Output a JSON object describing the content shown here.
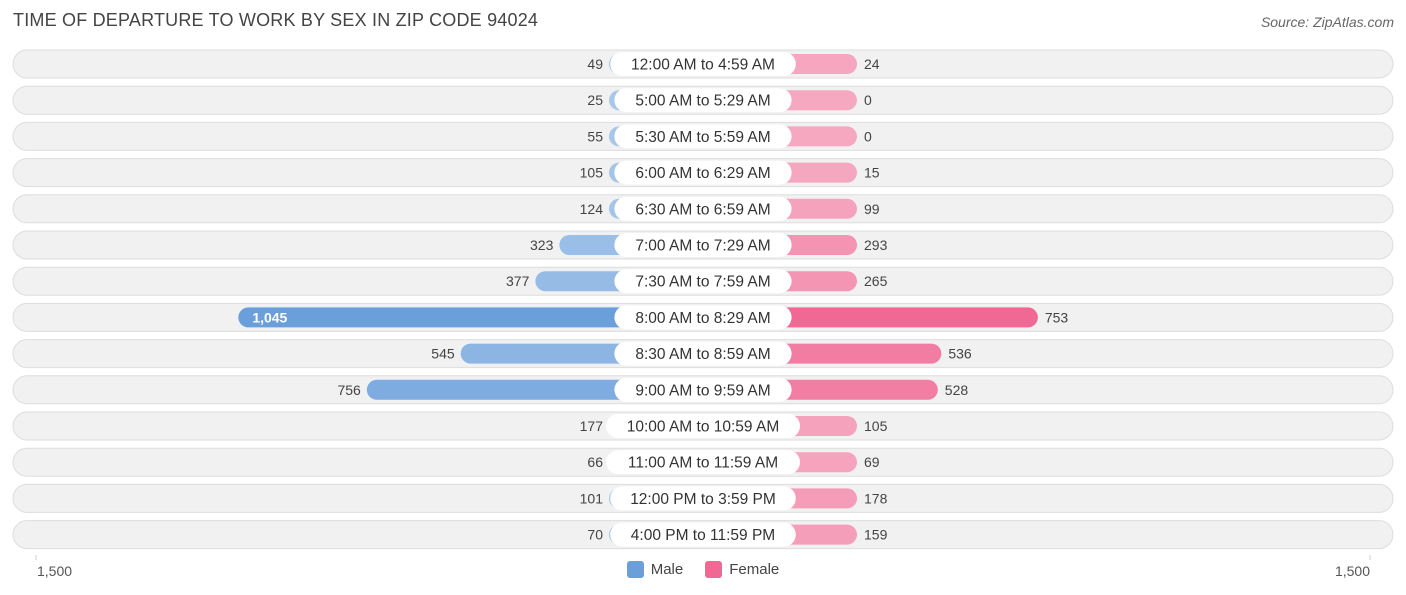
{
  "title": "TIME OF DEPARTURE TO WORK BY SEX IN ZIP CODE 94024",
  "source": "Source: ZipAtlas.com",
  "colors": {
    "male_light": "#a8c8ea",
    "male_dark": "#6a9fdc",
    "female_light": "#f6a8c0",
    "female_dark": "#f06894",
    "row_bg": "#f1f1f1",
    "row_border": "#dddddd"
  },
  "legend": {
    "male": "Male",
    "female": "Female"
  },
  "axis": {
    "left_label": "1,500",
    "right_label": "1,500"
  },
  "chart_data": {
    "type": "bar",
    "orientation": "horizontal-diverging",
    "title": "TIME OF DEPARTURE TO WORK BY SEX IN ZIP CODE 94024",
    "xlim": [
      -1500,
      1500
    ],
    "categories": [
      "12:00 AM to 4:59 AM",
      "5:00 AM to 5:29 AM",
      "5:30 AM to 5:59 AM",
      "6:00 AM to 6:29 AM",
      "6:30 AM to 6:59 AM",
      "7:00 AM to 7:29 AM",
      "7:30 AM to 7:59 AM",
      "8:00 AM to 8:29 AM",
      "8:30 AM to 8:59 AM",
      "9:00 AM to 9:59 AM",
      "10:00 AM to 10:59 AM",
      "11:00 AM to 11:59 AM",
      "12:00 PM to 3:59 PM",
      "4:00 PM to 11:59 PM"
    ],
    "series": [
      {
        "name": "Male",
        "values": [
          49,
          25,
          55,
          105,
          124,
          323,
          377,
          1045,
          545,
          756,
          177,
          66,
          101,
          70
        ],
        "labels": [
          "49",
          "25",
          "55",
          "105",
          "124",
          "323",
          "377",
          "1,045",
          "545",
          "756",
          "177",
          "66",
          "101",
          "70"
        ]
      },
      {
        "name": "Female",
        "values": [
          24,
          0,
          0,
          15,
          99,
          293,
          265,
          753,
          536,
          528,
          105,
          69,
          178,
          159
        ],
        "labels": [
          "24",
          "0",
          "0",
          "15",
          "99",
          "293",
          "265",
          "753",
          "536",
          "528",
          "105",
          "69",
          "178",
          "159"
        ]
      }
    ],
    "legend_position": "bottom-center"
  }
}
